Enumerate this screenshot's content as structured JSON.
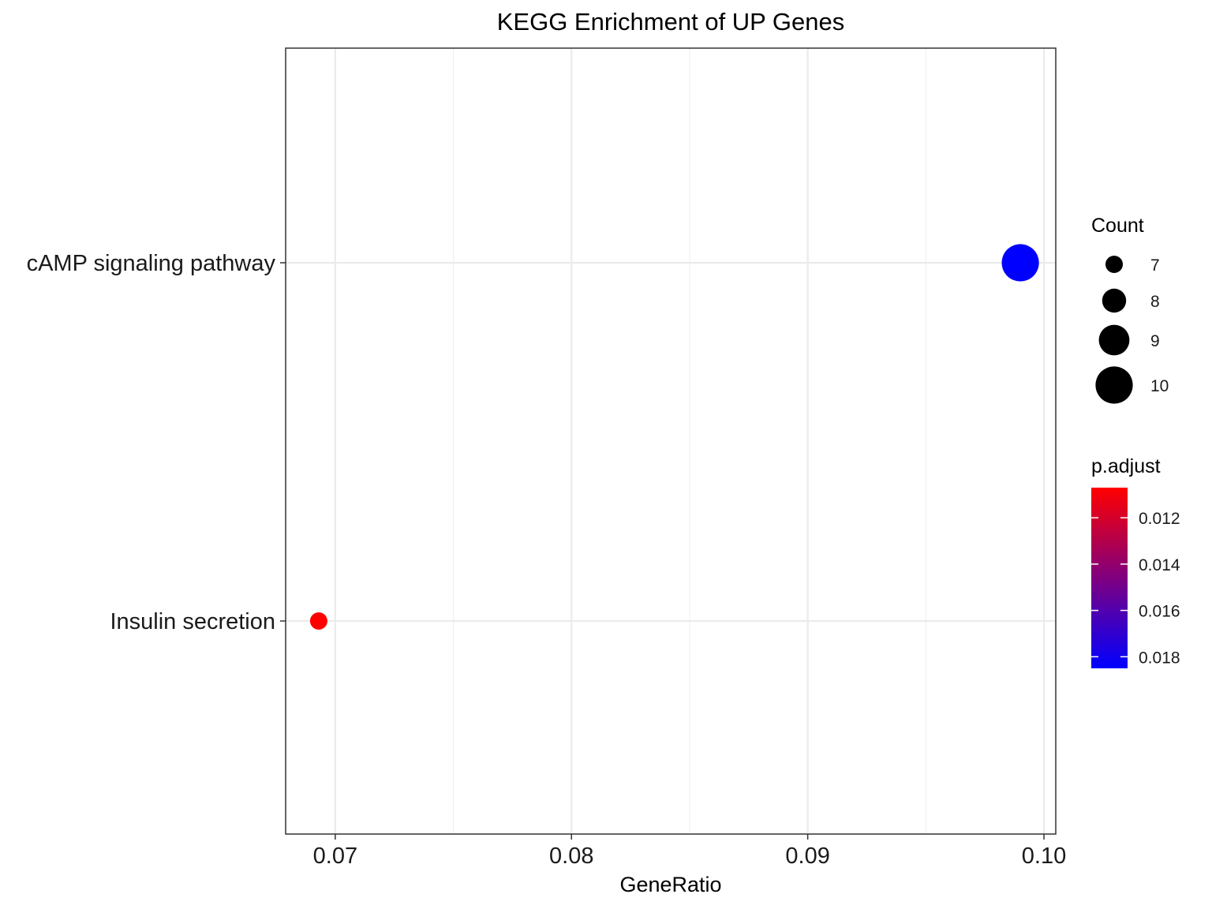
{
  "chart_data": {
    "type": "scatter",
    "title": "KEGG Enrichment of UP Genes",
    "xlabel": "GeneRatio",
    "ylabel": "",
    "xlim": [
      0.0679,
      0.1005
    ],
    "x_ticks": [
      "0.07",
      "0.08",
      "0.09",
      "0.10"
    ],
    "x_tick_values": [
      0.07,
      0.08,
      0.09,
      0.1
    ],
    "x_minor_values": [
      0.075,
      0.085,
      0.095
    ],
    "categories": [
      "cAMP signaling pathway",
      "Insulin secretion"
    ],
    "grid": true,
    "points": [
      {
        "category": "cAMP signaling pathway",
        "gene_ratio": 0.099,
        "count": 10,
        "p_adjust": 0.0185,
        "color": "#0000FF"
      },
      {
        "category": "Insulin secretion",
        "gene_ratio": 0.0693,
        "count": 7,
        "p_adjust": 0.0107,
        "color": "#FF0000"
      }
    ],
    "size_legend": {
      "title": "Count",
      "labels": [
        "7",
        "8",
        "9",
        "10"
      ],
      "values": [
        7,
        8,
        9,
        10
      ]
    },
    "color_legend": {
      "title": "p.adjust",
      "labels": [
        "0.012",
        "0.014",
        "0.016",
        "0.018"
      ],
      "values": [
        0.012,
        0.014,
        0.016,
        0.018
      ],
      "range": [
        0.0107,
        0.0185
      ],
      "low_color": "#FF0000",
      "high_color": "#0000FF"
    },
    "legend_position": "right"
  }
}
